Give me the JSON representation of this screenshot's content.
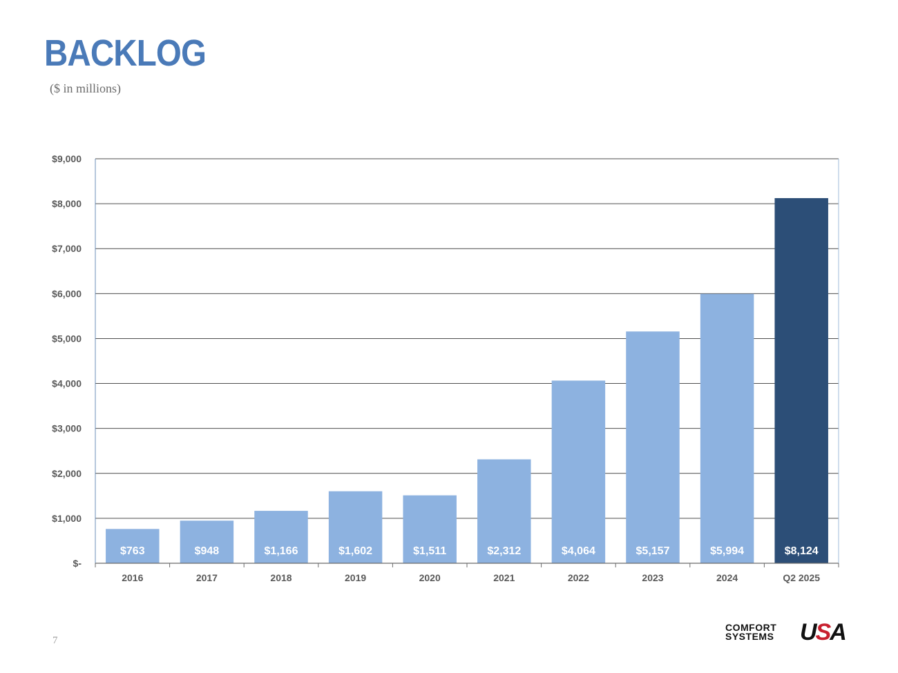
{
  "header": {
    "title": "BACKLOG",
    "subtitle": "($ in millions)"
  },
  "footer": {
    "page_number": "7",
    "logo_text_line1": "COMFORT",
    "logo_text_line2": "SYSTEMS",
    "logo_mark_u": "U",
    "logo_mark_s": "S",
    "logo_mark_a": "A"
  },
  "colors": {
    "bar_default": "#8db2e0",
    "bar_highlight": "#2c4e77",
    "title": "#4a7ab8",
    "logo_red": "#c8202f",
    "logo_blue": "#2f64b0"
  },
  "chart_data": {
    "type": "bar",
    "title": "BACKLOG",
    "subtitle": "($ in millions)",
    "xlabel": "",
    "ylabel": "",
    "categories": [
      "2016",
      "2017",
      "2018",
      "2019",
      "2020",
      "2021",
      "2022",
      "2023",
      "2024",
      "Q2 2025"
    ],
    "values": [
      763,
      948,
      1166,
      1602,
      1511,
      2312,
      4064,
      5157,
      5994,
      8124
    ],
    "data_labels": [
      "$763",
      "$948",
      "$1,166",
      "$1,602",
      "$1,511",
      "$2,312",
      "$4,064",
      "$5,157",
      "$5,994",
      "$8,124"
    ],
    "highlight_index": 9,
    "ylim": [
      0,
      9000
    ],
    "yticks": [
      0,
      1000,
      2000,
      3000,
      4000,
      5000,
      6000,
      7000,
      8000,
      9000
    ],
    "ytick_labels": [
      "$-",
      "$1,000",
      "$2,000",
      "$3,000",
      "$4,000",
      "$5,000",
      "$6,000",
      "$7,000",
      "$8,000",
      "$9,000"
    ],
    "grid": true,
    "legend": "none"
  }
}
